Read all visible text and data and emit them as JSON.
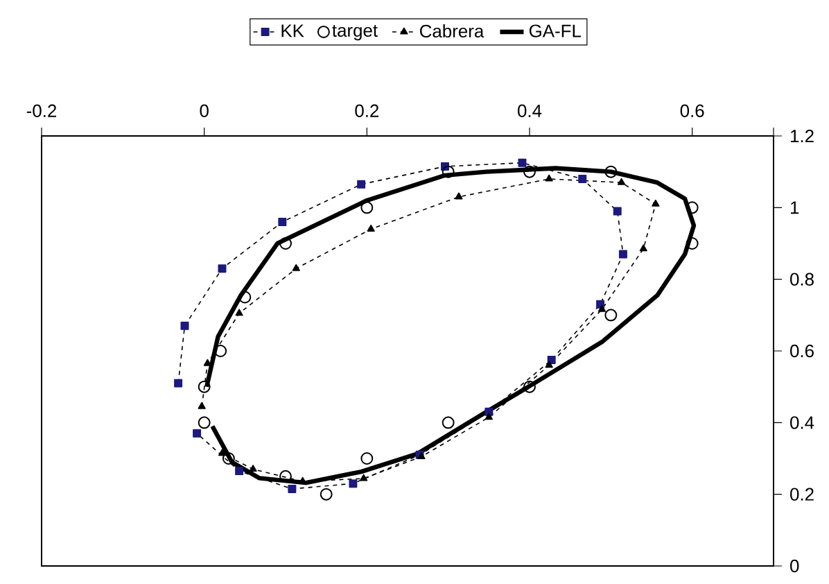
{
  "chart_data": {
    "type": "line",
    "xlim": [
      -0.2,
      0.7
    ],
    "ylim": [
      0,
      1.2
    ],
    "xticks": [
      -0.2,
      0,
      0.2,
      0.4,
      0.6,
      {
        "value": 0.7,
        "label": null
      }
    ],
    "yticks": [
      0,
      0.2,
      0.4,
      0.6,
      0.8,
      1,
      1.2
    ],
    "grid": false,
    "legend": "top",
    "series": [
      {
        "name": "KK",
        "marker": "square",
        "line_style": "dashed",
        "color": "#1c1a7e",
        "x": [
          -0.032,
          -0.024,
          0.022,
          0.096,
          0.193,
          0.296,
          0.391,
          0.465,
          0.508,
          0.515,
          0.487,
          0.427,
          0.35,
          0.265,
          0.183,
          0.108,
          0.043,
          -0.009
        ],
        "values": [
          0.51,
          0.67,
          0.83,
          0.96,
          1.065,
          1.115,
          1.125,
          1.08,
          0.99,
          0.87,
          0.73,
          0.575,
          0.43,
          0.31,
          0.23,
          0.215,
          0.265,
          0.37
        ]
      },
      {
        "name": "target",
        "type": "scatter",
        "marker": "circle",
        "color": "#000000",
        "x": [
          0,
          0.02,
          0.05,
          0.1,
          0.2,
          0.3,
          0.4,
          0.5,
          0.6,
          0.6,
          0.5,
          0.4,
          0.3,
          0.2,
          0.15,
          0.1,
          0.03,
          0
        ],
        "values": [
          0.5,
          0.6,
          0.75,
          0.9,
          1.0,
          1.1,
          1.1,
          1.1,
          1.0,
          0.9,
          0.7,
          0.5,
          0.4,
          0.3,
          0.2,
          0.25,
          0.3,
          0.4
        ]
      },
      {
        "name": "Cabrera",
        "marker": "triangle",
        "line_style": "dashed",
        "color": "#000000",
        "x": [
          -0.003,
          0.004,
          0.043,
          0.113,
          0.205,
          0.313,
          0.424,
          0.513,
          0.555,
          0.54,
          0.489,
          0.424,
          0.35,
          0.267,
          0.196,
          0.121,
          0.06,
          0.022
        ],
        "values": [
          0.445,
          0.565,
          0.705,
          0.83,
          0.94,
          1.03,
          1.08,
          1.07,
          1.01,
          0.885,
          0.716,
          0.56,
          0.415,
          0.305,
          0.244,
          0.236,
          0.27,
          0.314
        ]
      },
      {
        "name": "GA-FL",
        "marker": "none",
        "line_style": "solid",
        "color": "#000000",
        "x": [
          0.003,
          0.017,
          0.045,
          0.09,
          0.2,
          0.296,
          0.347,
          0.432,
          0.5,
          0.557,
          0.591,
          0.602,
          0.591,
          0.557,
          0.489,
          0.395,
          0.347,
          0.262,
          0.193,
          0.125,
          0.068,
          0.034,
          0.01
        ],
        "values": [
          0.5,
          0.64,
          0.755,
          0.9,
          1.02,
          1.09,
          1.1,
          1.11,
          1.1,
          1.07,
          1.025,
          0.95,
          0.87,
          0.755,
          0.625,
          0.495,
          0.43,
          0.313,
          0.263,
          0.232,
          0.245,
          0.29,
          0.39
        ]
      }
    ]
  }
}
